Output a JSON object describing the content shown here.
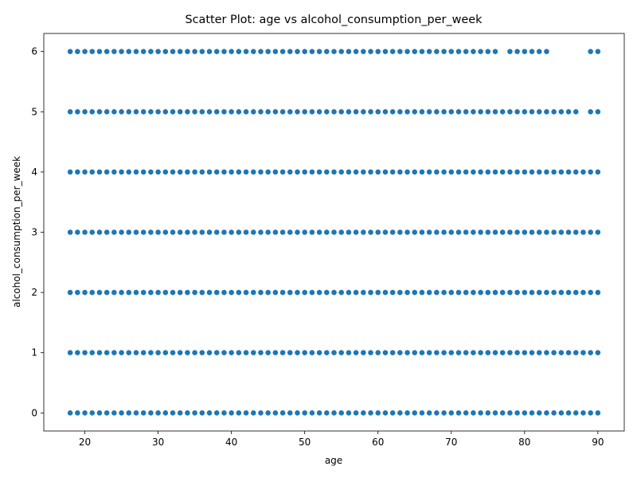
{
  "chart_data": {
    "type": "scatter",
    "title": "Scatter Plot: age vs alcohol_consumption_per_week",
    "xlabel": "age",
    "ylabel": "alcohol_consumption_per_week",
    "xlim": [
      14.4,
      93.6
    ],
    "ylim": [
      -0.3,
      6.3
    ],
    "xticks": [
      20,
      30,
      40,
      50,
      60,
      70,
      80,
      90
    ],
    "yticks": [
      0,
      1,
      2,
      3,
      4,
      5,
      6
    ],
    "grid": false,
    "marker_color": "#1f77b4",
    "series": [
      {
        "y": 0,
        "x_ranges": [
          [
            18,
            90
          ]
        ],
        "x_missing": []
      },
      {
        "y": 1,
        "x_ranges": [
          [
            18,
            90
          ]
        ],
        "x_missing": []
      },
      {
        "y": 2,
        "x_ranges": [
          [
            18,
            90
          ]
        ],
        "x_missing": []
      },
      {
        "y": 3,
        "x_ranges": [
          [
            18,
            90
          ]
        ],
        "x_missing": []
      },
      {
        "y": 4,
        "x_ranges": [
          [
            18,
            90
          ]
        ],
        "x_missing": []
      },
      {
        "y": 5,
        "x_ranges": [
          [
            18,
            87
          ],
          [
            89,
            90
          ]
        ],
        "x_missing": []
      },
      {
        "y": 6,
        "x_ranges": [
          [
            18,
            76
          ],
          [
            78,
            83
          ],
          [
            89,
            90
          ]
        ],
        "x_missing": []
      }
    ]
  }
}
